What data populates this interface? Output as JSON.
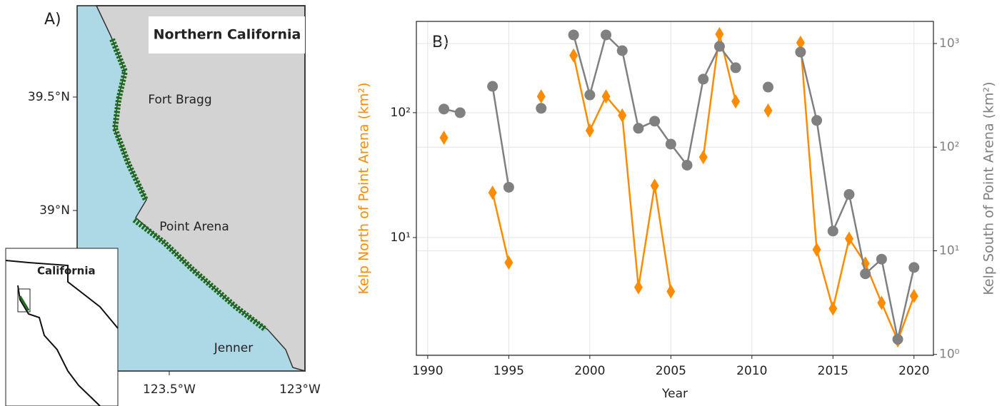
{
  "map": {
    "panel_label": "A)",
    "title": "Northern California",
    "places": [
      "Fort Bragg",
      "Point Arena",
      "Jenner"
    ],
    "inset_label": "California",
    "lat_ticks": [
      "39.5°N",
      "39°N"
    ],
    "lon_ticks": [
      "123.5°W",
      "123°W"
    ]
  },
  "chart_data": {
    "type": "line",
    "panel_label": "B)",
    "x_label": "Year",
    "y_label": "Kelp North of Point Arena (km²)",
    "y2_label": "Kelp South of Point Arena (km²)",
    "x": [
      1991,
      1992,
      1993,
      1994,
      1995,
      1996,
      1997,
      1998,
      1999,
      2000,
      2001,
      2002,
      2003,
      2004,
      2005,
      2006,
      2007,
      2008,
      2009,
      2010,
      2011,
      2012,
      2013,
      2014,
      2015,
      2016,
      2017,
      2018,
      2019,
      2020
    ],
    "series": [
      {
        "name": "Kelp North of Point Arena",
        "color": "#ff8c00",
        "marker": "diamond",
        "axis": "y",
        "values": [
          63,
          null,
          null,
          22.9,
          6.3,
          null,
          135,
          null,
          287,
          72,
          135,
          95,
          4.0,
          26,
          3.7,
          null,
          44,
          425,
          123,
          null,
          104,
          null,
          363,
          8.0,
          2.7,
          9.8,
          6.2,
          3.0,
          1.5,
          3.4
        ]
      },
      {
        "name": "Kelp South of Point Arena",
        "color": "#808080",
        "marker": "circle",
        "axis": "y2",
        "values": [
          233,
          215,
          null,
          386,
          41,
          null,
          237,
          null,
          1210,
          319,
          1210,
          853,
          152,
          178,
          107,
          67,
          453,
          938,
          584,
          null,
          380,
          null,
          827,
          181,
          15.5,
          35,
          6.0,
          8.3,
          1.4,
          6.9
        ]
      }
    ],
    "xlim": [
      1989.3,
      2021.2
    ],
    "xticks": [
      1990,
      1995,
      2000,
      2005,
      2010,
      2015,
      2020
    ],
    "ylim": [
      1.14,
      538
    ],
    "yticks": [
      {
        "value": 10,
        "label": "10¹"
      },
      {
        "value": 100,
        "label": "10²"
      }
    ],
    "y2lim": [
      0.98,
      1634
    ],
    "y2ticks": [
      {
        "value": 1,
        "label": "10⁰"
      },
      {
        "value": 10,
        "label": "10¹"
      },
      {
        "value": 100,
        "label": "10²"
      },
      {
        "value": 1000,
        "label": "10³"
      }
    ],
    "log_scale": true,
    "grid": true
  }
}
